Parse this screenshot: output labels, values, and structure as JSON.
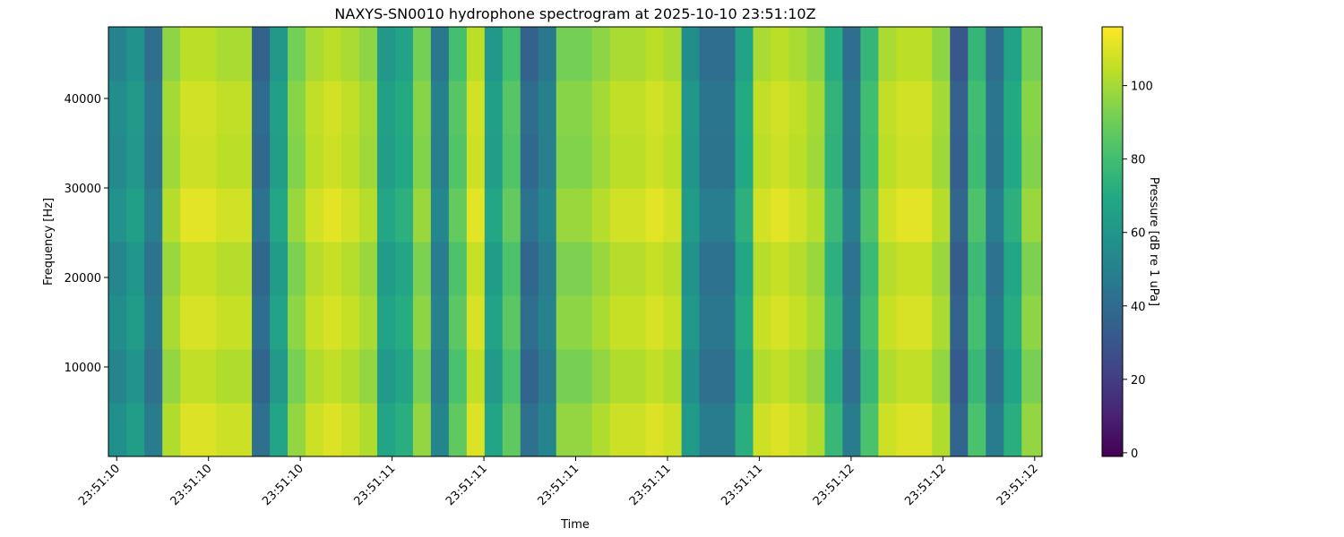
{
  "chart_data": {
    "type": "heatmap",
    "title": "NAXYS-SN0010 hydrophone spectrogram at 2025-10-10 23:51:10Z",
    "xlabel": "Time",
    "ylabel": "Frequency [Hz]",
    "colorbar_label": "Pressure [dB re 1 uPa]",
    "colormap": "viridis",
    "xlim": [
      10.382,
      12.416
    ],
    "xticks": [
      {
        "value": 10.4,
        "label": "23:51:10"
      },
      {
        "value": 10.6,
        "label": "23:51:10"
      },
      {
        "value": 10.8,
        "label": "23:51:10"
      },
      {
        "value": 11.0,
        "label": "23:51:11"
      },
      {
        "value": 11.2,
        "label": "23:51:11"
      },
      {
        "value": 11.4,
        "label": "23:51:11"
      },
      {
        "value": 11.6,
        "label": "23:51:11"
      },
      {
        "value": 11.8,
        "label": "23:51:11"
      },
      {
        "value": 12.0,
        "label": "23:51:12"
      },
      {
        "value": 12.2,
        "label": "23:51:12"
      },
      {
        "value": 12.4,
        "label": "23:51:12"
      }
    ],
    "ylim": [
      0,
      48000
    ],
    "yticks": [
      10000,
      20000,
      30000,
      40000
    ],
    "clim": [
      -1,
      116
    ],
    "cticks": [
      0,
      20,
      40,
      60,
      80,
      100
    ],
    "x": [
      10.402,
      10.441,
      10.48,
      10.519,
      10.558,
      10.597,
      10.636,
      10.675,
      10.714,
      10.753,
      10.792,
      10.831,
      10.87,
      10.909,
      10.948,
      10.987,
      11.026,
      11.065,
      11.104,
      11.143,
      11.182,
      11.221,
      11.26,
      11.299,
      11.338,
      11.377,
      11.416,
      11.455,
      11.494,
      11.533,
      11.572,
      11.611,
      11.65,
      11.689,
      11.728,
      11.767,
      11.806,
      11.845,
      11.884,
      11.923,
      11.962,
      12.001,
      12.04,
      12.079,
      12.118,
      12.157,
      12.196,
      12.235,
      12.274,
      12.313,
      12.352,
      12.391
    ],
    "y": [
      3000,
      9000,
      15000,
      21000,
      27000,
      33000,
      39000,
      45000
    ],
    "z": [
      [
        57,
        64,
        47,
        102,
        110,
        110,
        107,
        107,
        42,
        67,
        97,
        107,
        110,
        107,
        102,
        67,
        72,
        97,
        52,
        87,
        110,
        67,
        87,
        42,
        52,
        97,
        97,
        102,
        107,
        107,
        110,
        107,
        62,
        47,
        47,
        72,
        107,
        110,
        107,
        102,
        77,
        47,
        82,
        107,
        110,
        110,
        102,
        37,
        82,
        47,
        72,
        97
      ],
      [
        52,
        59,
        42,
        97,
        105,
        105,
        102,
        102,
        37,
        62,
        92,
        102,
        105,
        102,
        97,
        62,
        67,
        92,
        47,
        82,
        105,
        62,
        82,
        37,
        47,
        92,
        92,
        97,
        102,
        102,
        105,
        102,
        57,
        42,
        42,
        67,
        102,
        105,
        102,
        97,
        72,
        42,
        77,
        102,
        105,
        105,
        97,
        32,
        77,
        42,
        67,
        92
      ],
      [
        56,
        63,
        46,
        101,
        109,
        109,
        106,
        106,
        41,
        66,
        96,
        106,
        109,
        106,
        101,
        66,
        71,
        96,
        51,
        86,
        109,
        66,
        86,
        41,
        51,
        96,
        96,
        101,
        106,
        106,
        109,
        106,
        61,
        46,
        46,
        71,
        106,
        109,
        106,
        101,
        76,
        46,
        81,
        106,
        109,
        109,
        101,
        36,
        81,
        46,
        71,
        96
      ],
      [
        53,
        60,
        43,
        98,
        106,
        106,
        103,
        103,
        38,
        63,
        93,
        103,
        106,
        103,
        98,
        63,
        68,
        93,
        48,
        83,
        106,
        63,
        83,
        38,
        48,
        93,
        93,
        98,
        103,
        103,
        106,
        103,
        58,
        43,
        43,
        68,
        103,
        106,
        103,
        98,
        73,
        43,
        78,
        103,
        106,
        106,
        98,
        33,
        78,
        43,
        68,
        93
      ],
      [
        58,
        65,
        48,
        103,
        111,
        111,
        108,
        108,
        43,
        68,
        98,
        108,
        111,
        108,
        103,
        68,
        73,
        98,
        53,
        88,
        111,
        68,
        88,
        43,
        53,
        98,
        98,
        103,
        108,
        108,
        111,
        108,
        63,
        48,
        48,
        73,
        108,
        111,
        108,
        103,
        78,
        48,
        83,
        108,
        111,
        111,
        103,
        38,
        83,
        48,
        73,
        98
      ],
      [
        54,
        61,
        44,
        99,
        107,
        107,
        104,
        104,
        39,
        64,
        94,
        104,
        107,
        104,
        99,
        64,
        69,
        94,
        49,
        84,
        107,
        64,
        84,
        39,
        49,
        94,
        94,
        99,
        104,
        104,
        107,
        104,
        59,
        44,
        44,
        69,
        104,
        107,
        104,
        99,
        74,
        44,
        79,
        104,
        107,
        107,
        99,
        34,
        79,
        44,
        69,
        94
      ],
      [
        55,
        62,
        45,
        100,
        108,
        108,
        105,
        105,
        40,
        65,
        95,
        105,
        108,
        105,
        100,
        65,
        70,
        95,
        50,
        85,
        108,
        65,
        85,
        40,
        50,
        95,
        95,
        100,
        105,
        105,
        108,
        105,
        60,
        45,
        45,
        70,
        105,
        108,
        105,
        100,
        75,
        45,
        80,
        105,
        108,
        108,
        100,
        35,
        80,
        45,
        70,
        95
      ],
      [
        51,
        58,
        41,
        96,
        104,
        104,
        101,
        101,
        36,
        61,
        91,
        101,
        104,
        101,
        96,
        61,
        66,
        91,
        46,
        81,
        104,
        61,
        81,
        36,
        46,
        91,
        91,
        96,
        101,
        101,
        104,
        101,
        56,
        41,
        41,
        66,
        101,
        104,
        101,
        96,
        71,
        41,
        76,
        101,
        104,
        104,
        96,
        31,
        76,
        41,
        66,
        91
      ]
    ]
  }
}
